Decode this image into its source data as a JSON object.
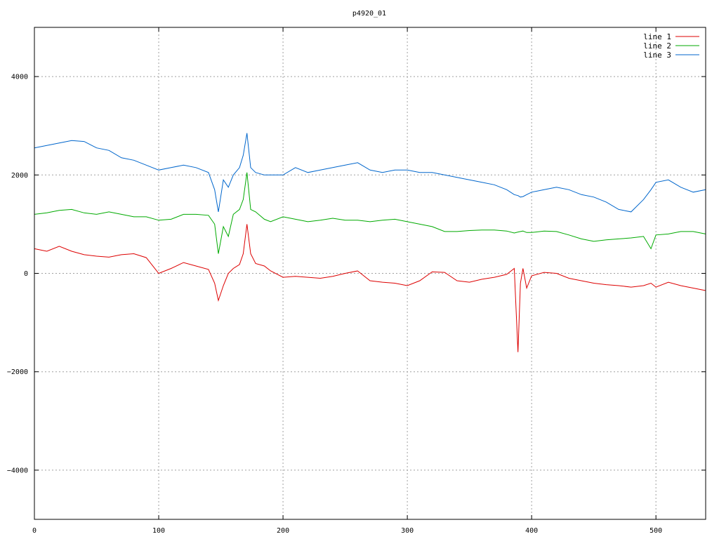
{
  "chart_data": {
    "type": "line",
    "title": "p4920_01",
    "xlabel": "",
    "ylabel": "",
    "xlim": [
      0,
      540
    ],
    "ylim": [
      -5000,
      5000
    ],
    "x_ticks": [
      0,
      100,
      200,
      300,
      400,
      500
    ],
    "y_ticks": [
      -4000,
      -2000,
      0,
      2000,
      4000
    ],
    "y_tick_labels": [
      "−4000",
      "−2000",
      "0",
      "2000",
      "4000"
    ],
    "grid": true,
    "legend_position": "top-right",
    "x": [
      0,
      10,
      20,
      30,
      40,
      50,
      60,
      70,
      80,
      90,
      100,
      110,
      120,
      130,
      140,
      145,
      148,
      152,
      156,
      160,
      165,
      168,
      171,
      174,
      178,
      185,
      190,
      200,
      210,
      220,
      230,
      240,
      250,
      260,
      270,
      280,
      290,
      300,
      310,
      320,
      330,
      340,
      350,
      360,
      370,
      380,
      386,
      389,
      391,
      393,
      396,
      400,
      410,
      420,
      430,
      440,
      450,
      460,
      470,
      480,
      490,
      496,
      500,
      510,
      520,
      530,
      540
    ],
    "series": [
      {
        "name": "line 1",
        "color": "#dd0000",
        "values": [
          500,
          450,
          550,
          450,
          380,
          350,
          330,
          380,
          400,
          320,
          0,
          100,
          220,
          150,
          80,
          -200,
          -550,
          -250,
          0,
          100,
          180,
          400,
          1000,
          400,
          200,
          150,
          50,
          -80,
          -60,
          -80,
          -100,
          -60,
          0,
          50,
          -150,
          -180,
          -200,
          -250,
          -150,
          30,
          20,
          -150,
          -180,
          -120,
          -80,
          -20,
          100,
          -1600,
          -200,
          100,
          -300,
          -50,
          20,
          0,
          -100,
          -150,
          -200,
          -230,
          -250,
          -280,
          -250,
          -200,
          -280,
          -180,
          -250,
          -300,
          -350
        ]
      },
      {
        "name": "line 2",
        "color": "#00aa00",
        "values": [
          1200,
          1230,
          1280,
          1300,
          1230,
          1200,
          1250,
          1200,
          1150,
          1150,
          1080,
          1100,
          1200,
          1200,
          1180,
          1000,
          400,
          950,
          750,
          1200,
          1300,
          1500,
          2050,
          1300,
          1250,
          1100,
          1050,
          1150,
          1100,
          1050,
          1080,
          1120,
          1080,
          1080,
          1050,
          1080,
          1100,
          1050,
          1000,
          950,
          850,
          850,
          870,
          880,
          880,
          860,
          820,
          840,
          850,
          860,
          830,
          830,
          860,
          850,
          780,
          700,
          650,
          680,
          700,
          720,
          750,
          500,
          780,
          800,
          850,
          850,
          800
        ]
      },
      {
        "name": "line 3",
        "color": "#0066cc",
        "values": [
          2550,
          2600,
          2650,
          2700,
          2680,
          2550,
          2500,
          2350,
          2300,
          2200,
          2100,
          2150,
          2200,
          2150,
          2050,
          1700,
          1250,
          1900,
          1750,
          2000,
          2150,
          2400,
          2850,
          2150,
          2050,
          2000,
          2000,
          2000,
          2150,
          2050,
          2100,
          2150,
          2200,
          2250,
          2100,
          2050,
          2100,
          2100,
          2050,
          2050,
          2000,
          1950,
          1900,
          1850,
          1800,
          1700,
          1600,
          1580,
          1550,
          1560,
          1600,
          1650,
          1700,
          1750,
          1700,
          1600,
          1550,
          1450,
          1300,
          1250,
          1500,
          1700,
          1850,
          1900,
          1750,
          1650,
          1700
        ]
      }
    ]
  }
}
